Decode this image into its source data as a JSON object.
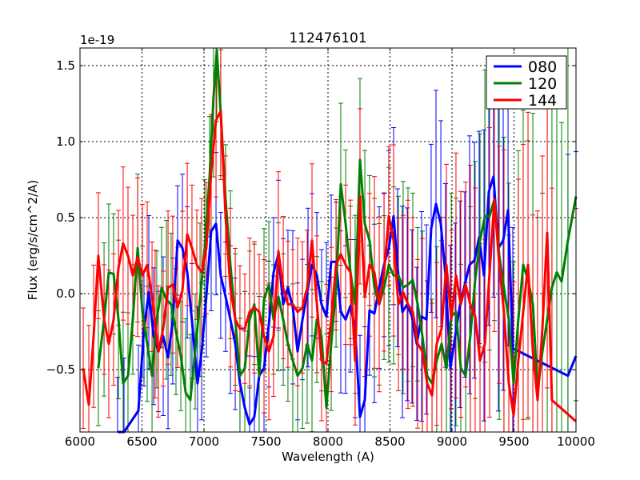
{
  "chart_data": {
    "type": "line",
    "title": "112476101",
    "xlabel": "Wavelength (A)",
    "ylabel": "Flux (erg/s/cm^2/A)",
    "y_offset_label": "1e-19",
    "xlim": [
      6000,
      10000
    ],
    "ylim": [
      -0.91,
      1.616
    ],
    "xticks": [
      6000,
      6500,
      7000,
      7500,
      8000,
      8500,
      9000,
      9500,
      10000
    ],
    "yticks": [
      -0.5,
      0.0,
      0.5,
      1.0,
      1.5
    ],
    "ytick_labels": [
      "−0.5",
      "0.0",
      "0.5",
      "1.0",
      "1.5"
    ],
    "grid": true,
    "legend_position": "top-right",
    "yerr_profile": [
      [
        6000,
        0.45
      ],
      [
        8000,
        0.45
      ],
      [
        9000,
        0.7
      ],
      [
        9500,
        1.0
      ],
      [
        10000,
        1.4
      ]
    ],
    "series": [
      {
        "name": "080",
        "color": "#0000ff",
        "x": [
          6303,
          6355,
          6471,
          6516,
          6555,
          6594,
          6632,
          6671,
          6710,
          6748,
          6787,
          6826,
          6865,
          6903,
          6948,
          6981,
          7019,
          7058,
          7097,
          7135,
          7174,
          7213,
          7252,
          7290,
          7329,
          7368,
          7406,
          7445,
          7484,
          7523,
          7561,
          7600,
          7639,
          7677,
          7716,
          7755,
          7794,
          7839,
          7871,
          7910,
          7948,
          7987,
          8026,
          8065,
          8103,
          8142,
          8181,
          8219,
          8258,
          8297,
          8335,
          8374,
          8413,
          8452,
          8490,
          8529,
          8561,
          8600,
          8639,
          8677,
          8716,
          8755,
          8794,
          8832,
          8871,
          8910,
          8948,
          8987,
          9026,
          9065,
          9103,
          9142,
          9181,
          9219,
          9258,
          9297,
          9335,
          9374,
          9413,
          9452,
          9490,
          9935,
          10000
        ],
        "y": [
          -0.91,
          -0.91,
          -0.77,
          -0.23,
          0.01,
          -0.28,
          -0.38,
          -0.28,
          -0.42,
          -0.18,
          0.35,
          0.3,
          0.14,
          -0.18,
          -0.59,
          -0.38,
          -0.02,
          0.41,
          0.46,
          0.12,
          -0.02,
          -0.17,
          -0.33,
          -0.59,
          -0.75,
          -0.86,
          -0.81,
          -0.54,
          -0.49,
          -0.2,
          0.14,
          0.26,
          -0.07,
          0.04,
          -0.09,
          -0.38,
          -0.17,
          0.04,
          0.19,
          0.12,
          -0.07,
          -0.15,
          0.21,
          0.21,
          -0.12,
          -0.17,
          -0.08,
          -0.23,
          -0.81,
          -0.7,
          -0.11,
          -0.13,
          0.04,
          0.19,
          0.3,
          0.51,
          0.17,
          -0.12,
          -0.07,
          -0.15,
          -0.33,
          -0.15,
          -0.17,
          0.43,
          0.59,
          0.46,
          0.12,
          -0.49,
          -0.28,
          -0.07,
          0.06,
          0.19,
          0.22,
          0.37,
          0.12,
          0.67,
          0.77,
          0.3,
          0.35,
          0.55,
          -0.36,
          -0.54,
          -0.41
        ]
      },
      {
        "name": "120",
        "color": "#008000",
        "x": [
          6148,
          6194,
          6232,
          6271,
          6310,
          6348,
          6387,
          6426,
          6465,
          6503,
          6542,
          6581,
          6619,
          6658,
          6697,
          6735,
          6774,
          6813,
          6852,
          6890,
          6929,
          6968,
          7006,
          7045,
          7077,
          7103,
          7135,
          7174,
          7213,
          7252,
          7290,
          7329,
          7368,
          7406,
          7445,
          7484,
          7523,
          7561,
          7600,
          7639,
          7677,
          7716,
          7755,
          7794,
          7832,
          7871,
          7910,
          7948,
          7987,
          8026,
          8065,
          8103,
          8142,
          8181,
          8219,
          8258,
          8297,
          8335,
          8374,
          8413,
          8452,
          8490,
          8529,
          8568,
          8606,
          8645,
          8684,
          8723,
          8761,
          8800,
          8839,
          8877,
          8916,
          8955,
          8994,
          9032,
          9071,
          9110,
          9148,
          9187,
          9226,
          9265,
          9303,
          9342,
          9381,
          9419,
          9458,
          9497,
          9535,
          9574,
          9613,
          9652,
          9690,
          9729,
          9768,
          9806,
          9845,
          9884,
          9935,
          10000
        ],
        "y": [
          -0.49,
          -0.17,
          0.14,
          0.13,
          -0.17,
          -0.59,
          -0.54,
          -0.17,
          0.3,
          -0.12,
          -0.33,
          -0.54,
          -0.17,
          0.04,
          -0.04,
          -0.07,
          -0.25,
          -0.41,
          -0.65,
          -0.7,
          -0.38,
          -0.04,
          0.3,
          0.77,
          1.29,
          1.6,
          1.19,
          0.62,
          0.19,
          -0.17,
          -0.54,
          -0.49,
          -0.17,
          -0.07,
          -0.54,
          -0.04,
          0.06,
          -0.17,
          -0.02,
          -0.17,
          -0.33,
          -0.44,
          -0.54,
          -0.49,
          -0.33,
          -0.44,
          -0.17,
          -0.28,
          -0.75,
          -0.33,
          0.04,
          0.72,
          0.46,
          0.14,
          -0.07,
          0.88,
          0.46,
          0.35,
          0.04,
          -0.07,
          0.04,
          0.19,
          0.12,
          0.12,
          0.04,
          0.06,
          0.09,
          -0.07,
          -0.28,
          -0.54,
          -0.59,
          -0.44,
          -0.33,
          -0.49,
          -0.15,
          -0.12,
          -0.49,
          -0.54,
          -0.28,
          0.09,
          0.35,
          0.51,
          0.51,
          0.62,
          0.25,
          0.04,
          -0.17,
          -0.59,
          -0.17,
          0.19,
          0.09,
          -0.07,
          -0.65,
          -0.38,
          -0.17,
          0.04,
          0.14,
          0.08,
          0.35,
          0.64
        ]
      },
      {
        "name": "144",
        "color": "#ff0000",
        "x": [
          6026,
          6071,
          6110,
          6148,
          6194,
          6232,
          6271,
          6310,
          6348,
          6387,
          6426,
          6465,
          6503,
          6542,
          6581,
          6606,
          6632,
          6671,
          6710,
          6748,
          6787,
          6826,
          6865,
          6903,
          6942,
          6981,
          7019,
          7058,
          7097,
          7135,
          7174,
          7213,
          7252,
          7290,
          7329,
          7368,
          7406,
          7445,
          7484,
          7523,
          7561,
          7600,
          7639,
          7677,
          7716,
          7755,
          7794,
          7832,
          7871,
          7910,
          7948,
          7987,
          8026,
          8065,
          8103,
          8142,
          8181,
          8219,
          8258,
          8297,
          8335,
          8374,
          8413,
          8452,
          8490,
          8529,
          8568,
          8606,
          8645,
          8684,
          8723,
          8761,
          8800,
          8839,
          8877,
          8916,
          8955,
          8994,
          9032,
          9071,
          9110,
          9148,
          9187,
          9226,
          9265,
          9303,
          9342,
          9381,
          9419,
          9458,
          9497,
          9535,
          9574,
          9613,
          9652,
          9690,
          9729,
          9768,
          9806,
          10000
        ],
        "y": [
          -0.49,
          -0.73,
          -0.28,
          0.25,
          -0.17,
          -0.33,
          -0.17,
          0.17,
          0.33,
          0.25,
          0.12,
          0.24,
          0.12,
          0.19,
          -0.02,
          -0.2,
          -0.38,
          -0.23,
          0.04,
          0.06,
          -0.09,
          0.02,
          0.39,
          0.3,
          0.19,
          0.14,
          0.3,
          0.8,
          1.14,
          1.2,
          0.51,
          0.04,
          -0.17,
          -0.23,
          -0.23,
          -0.12,
          -0.09,
          -0.12,
          -0.28,
          -0.38,
          -0.28,
          0.28,
          0.04,
          -0.07,
          -0.07,
          -0.12,
          -0.09,
          0.04,
          0.35,
          -0.07,
          -0.44,
          -0.46,
          -0.17,
          0.19,
          0.26,
          0.19,
          0.14,
          -0.44,
          0.64,
          -0.02,
          0.19,
          0.14,
          -0.07,
          0.14,
          0.51,
          0.35,
          -0.07,
          0.01,
          -0.07,
          -0.12,
          -0.33,
          -0.38,
          -0.59,
          -0.67,
          -0.33,
          -0.23,
          0.19,
          -0.17,
          0.12,
          -0.07,
          0.06,
          -0.07,
          -0.15,
          -0.44,
          -0.33,
          0.14,
          0.62,
          0.19,
          -0.12,
          -0.59,
          -0.8,
          -0.44,
          -0.12,
          0.19,
          -0.38,
          -0.7,
          -0.23,
          0.4,
          -0.7,
          -0.84
        ]
      }
    ]
  }
}
